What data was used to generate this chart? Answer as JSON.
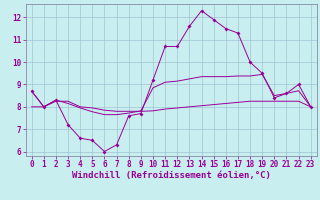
{
  "xlabel": "Windchill (Refroidissement éolien,°C)",
  "background_color": "#c8eef0",
  "line_color": "#990099",
  "xlim": [
    -0.5,
    23.5
  ],
  "ylim": [
    5.8,
    12.6
  ],
  "yticks": [
    6,
    7,
    8,
    9,
    10,
    11,
    12
  ],
  "xticks": [
    0,
    1,
    2,
    3,
    4,
    5,
    6,
    7,
    8,
    9,
    10,
    11,
    12,
    13,
    14,
    15,
    16,
    17,
    18,
    19,
    20,
    21,
    22,
    23
  ],
  "line1_x": [
    0,
    1,
    2,
    3,
    4,
    5,
    6,
    7,
    8,
    9,
    10,
    11,
    12,
    13,
    14,
    15,
    16,
    17,
    18,
    19,
    20,
    21,
    22,
    23
  ],
  "line1_y": [
    8.7,
    8.0,
    8.3,
    7.2,
    6.6,
    6.5,
    6.0,
    6.3,
    7.6,
    7.7,
    9.2,
    10.7,
    10.7,
    11.6,
    12.3,
    11.9,
    11.5,
    11.3,
    10.0,
    9.5,
    8.4,
    8.6,
    9.0,
    8.0
  ],
  "line2_x": [
    0,
    1,
    2,
    3,
    4,
    5,
    6,
    7,
    8,
    9,
    10,
    11,
    12,
    13,
    14,
    15,
    16,
    17,
    18,
    19,
    20,
    21,
    22,
    23
  ],
  "line2_y": [
    8.0,
    8.0,
    8.25,
    8.25,
    8.0,
    7.95,
    7.85,
    7.8,
    7.8,
    7.8,
    7.82,
    7.9,
    7.95,
    8.0,
    8.05,
    8.1,
    8.15,
    8.2,
    8.25,
    8.25,
    8.25,
    8.25,
    8.25,
    8.0
  ],
  "line3_x": [
    0,
    1,
    2,
    3,
    4,
    5,
    6,
    7,
    8,
    9,
    10,
    11,
    12,
    13,
    14,
    15,
    16,
    17,
    18,
    19,
    20,
    21,
    22,
    23
  ],
  "line3_y": [
    8.7,
    8.0,
    8.3,
    8.15,
    7.95,
    7.78,
    7.65,
    7.65,
    7.72,
    7.82,
    8.85,
    9.1,
    9.15,
    9.25,
    9.35,
    9.35,
    9.35,
    9.38,
    9.38,
    9.45,
    8.5,
    8.6,
    8.72,
    8.0
  ],
  "grid_color": "#99bbcc",
  "tick_fontsize": 5.5,
  "label_fontsize": 6.5,
  "markersize": 2.0
}
